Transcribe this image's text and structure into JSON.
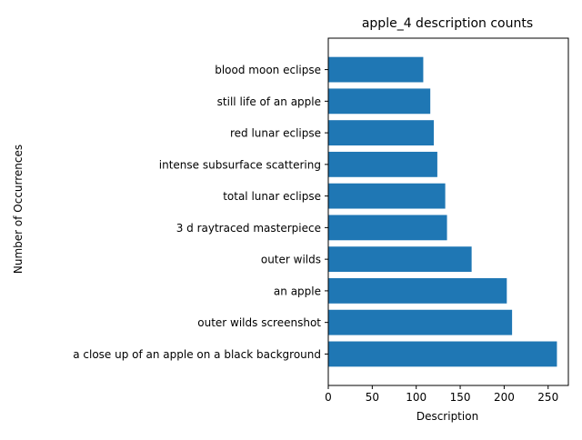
{
  "chart_data": {
    "type": "bar",
    "orientation": "horizontal",
    "title": "apple_4 description counts",
    "xlabel": "Description",
    "ylabel": "Number of Occurrences",
    "categories": [
      "a close up of an apple on a black background",
      "outer wilds screenshot",
      "an apple",
      "outer wilds",
      "3 d raytraced masterpiece",
      "total lunar eclipse",
      "intense subsurface scattering",
      "red lunar eclipse",
      "still life of an apple",
      "blood moon eclipse"
    ],
    "values": [
      260,
      209,
      203,
      163,
      135,
      133,
      124,
      120,
      116,
      108
    ],
    "xlim": [
      0,
      273
    ],
    "xticks": [
      0,
      50,
      100,
      150,
      200,
      250
    ],
    "grid": false,
    "bar_color": "#1f77b4"
  }
}
